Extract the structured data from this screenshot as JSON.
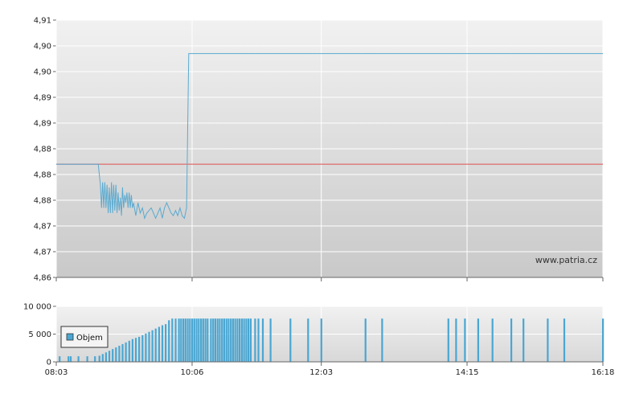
{
  "chart_data": [
    {
      "type": "line",
      "title": "",
      "xlabel": "",
      "ylabel": "",
      "y_tick_labels": [
        "4,91",
        "4,90",
        "4,90",
        "4,89",
        "4,89",
        "4,88",
        "4,88",
        "4,88",
        "4,87",
        "4,87",
        "4,86"
      ],
      "ylim": [
        4.86,
        4.91
      ],
      "x_tick_labels": [
        "08:03",
        "10:06",
        "12:03",
        "14:15",
        "16:18"
      ],
      "x_ticks_minutes": [
        0,
        123,
        240,
        372,
        495
      ],
      "xlim_minutes": [
        0,
        495
      ],
      "reference_line": {
        "value": 4.882,
        "color": "#e06060"
      },
      "series": [
        {
          "color": "#5aaad0",
          "x_minutes": [
            0,
            38,
            40,
            41,
            42,
            43,
            44,
            45,
            46,
            47,
            48,
            49,
            50,
            51,
            52,
            53,
            54,
            55,
            56,
            57,
            58,
            59,
            60,
            61,
            62,
            63,
            64,
            65,
            66,
            67,
            68,
            69,
            70,
            72,
            74,
            76,
            78,
            80,
            82,
            84,
            86,
            88,
            90,
            92,
            94,
            96,
            98,
            100,
            102,
            104,
            106,
            108,
            110,
            112,
            114,
            116,
            118,
            120,
            495
          ],
          "values": [
            4.882,
            4.882,
            4.878,
            4.8735,
            4.8785,
            4.8735,
            4.8785,
            4.8735,
            4.878,
            4.8725,
            4.8775,
            4.8725,
            4.8785,
            4.8725,
            4.878,
            4.873,
            4.878,
            4.8725,
            4.8765,
            4.873,
            4.8755,
            4.872,
            4.8775,
            4.8735,
            4.876,
            4.8745,
            4.8765,
            4.8735,
            4.8765,
            4.8735,
            4.876,
            4.8735,
            4.8745,
            4.872,
            4.8745,
            4.8725,
            4.8735,
            4.8715,
            4.8725,
            4.873,
            4.8735,
            4.8725,
            4.8715,
            4.8725,
            4.8735,
            4.8715,
            4.8735,
            4.8745,
            4.8735,
            4.8725,
            4.872,
            4.873,
            4.872,
            4.8735,
            4.872,
            4.8715,
            4.8735,
            4.9035,
            4.9035
          ]
        }
      ],
      "watermark": "www.patria.cz"
    },
    {
      "type": "bar",
      "title": "",
      "legend": [
        "Objem"
      ],
      "legend_position": "left",
      "y_tick_labels": [
        "10 000",
        "5 000",
        "0"
      ],
      "ylim": [
        0,
        10000
      ],
      "x_tick_labels": [
        "08:03",
        "10:06",
        "12:03",
        "14:15",
        "16:18"
      ],
      "xlim_minutes": [
        0,
        495
      ],
      "color": "#4aa6d2",
      "bars": {
        "x_minutes": [
          3,
          11,
          13,
          20,
          28,
          35,
          39,
          42,
          45,
          48,
          51,
          54,
          57,
          60,
          63,
          66,
          69,
          72,
          75,
          78,
          81,
          84,
          87,
          90,
          93,
          96,
          99,
          102,
          105,
          108,
          111,
          113,
          115,
          117,
          119,
          121,
          123,
          125,
          127,
          129,
          131,
          133,
          135,
          137,
          140,
          142,
          144,
          146,
          148,
          150,
          152,
          154,
          156,
          158,
          160,
          162,
          164,
          166,
          168,
          170,
          172,
          174,
          176,
          180,
          183,
          187,
          194,
          212,
          228,
          240,
          280,
          295,
          355,
          362,
          370,
          382,
          395,
          412,
          423,
          445,
          460,
          495
        ],
        "values": [
          1000,
          1000,
          1000,
          1000,
          1000,
          1000,
          1100,
          1400,
          1700,
          2000,
          2300,
          2600,
          2900,
          3200,
          3500,
          3800,
          4100,
          4300,
          4500,
          4800,
          5100,
          5400,
          5700,
          6000,
          6300,
          6600,
          6800,
          7500,
          7800,
          7800,
          7800,
          7800,
          7800,
          7800,
          7800,
          7800,
          7800,
          7800,
          7800,
          7800,
          7800,
          7800,
          7800,
          7800,
          7800,
          7800,
          7800,
          7800,
          7800,
          7800,
          7800,
          7800,
          7800,
          7800,
          7800,
          7800,
          7800,
          7800,
          7800,
          7800,
          7800,
          7800,
          7800,
          7800,
          7800,
          7800,
          7800,
          7800,
          7800,
          7800,
          7800,
          7800,
          7800,
          7800,
          7800,
          7800,
          7800,
          7800,
          7800,
          7800,
          7800,
          7800
        ]
      }
    }
  ]
}
